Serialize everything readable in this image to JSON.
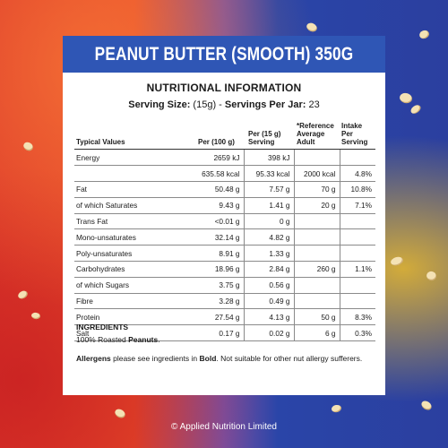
{
  "product": {
    "title": "PEANUT BUTTER (SMOOTH) 350G"
  },
  "nutrition": {
    "heading": "NUTRITIONAL INFORMATION",
    "serving_size_label": "Serving Size:",
    "serving_size_value": "(15g)",
    "servings_label": "Servings Per Jar:",
    "servings_value": "23",
    "columns": {
      "typical": "Typical Values",
      "per100": "Per (100 g)",
      "per15": "Per (15 g) Serving",
      "reference": "*Reference Average Adult",
      "intake": "Intake Per Serving"
    },
    "rows": [
      {
        "label": "Energy",
        "per100": "2659 kJ",
        "per15": "398 kJ",
        "ref": "",
        "ri": ""
      },
      {
        "label": "",
        "per100": "635.58 kcal",
        "per15": "95.33 kcal",
        "ref": "2000 kcal",
        "ri": "4.8%"
      },
      {
        "label": "Fat",
        "per100": "50.48 g",
        "per15": "7.57 g",
        "ref": "70 g",
        "ri": "10.8%"
      },
      {
        "label": "of which Saturates",
        "per100": "9.43 g",
        "per15": "1.41 g",
        "ref": "20 g",
        "ri": "7.1%"
      },
      {
        "label": "Trans Fat",
        "per100": "<0.01 g",
        "per15": "0 g",
        "ref": "",
        "ri": ""
      },
      {
        "label": "Mono-unsaturates",
        "per100": "32.14 g",
        "per15": "4.82 g",
        "ref": "",
        "ri": ""
      },
      {
        "label": "Poly-unsaturates",
        "per100": "8.91 g",
        "per15": "1.33 g",
        "ref": "",
        "ri": ""
      },
      {
        "label": "Carbohydrates",
        "per100": "18.96 g",
        "per15": "2.84 g",
        "ref": "260 g",
        "ri": "1.1%"
      },
      {
        "label": "of which Sugars",
        "per100": "3.75 g",
        "per15": "0.56 g",
        "ref": "",
        "ri": ""
      },
      {
        "label": "Fibre",
        "per100": "3.28 g",
        "per15": "0.49 g",
        "ref": "",
        "ri": ""
      },
      {
        "label": "Protein",
        "per100": "27.54 g",
        "per15": "4.13 g",
        "ref": "50 g",
        "ri": "8.3%"
      },
      {
        "label": "Salt",
        "per100": "0.17 g",
        "per15": "0.02 g",
        "ref": "6 g",
        "ri": "0.3%"
      }
    ]
  },
  "ingredients": {
    "heading": "INGREDIENTS",
    "text_prefix": "100% Roasted ",
    "text_bold": "Peanuts",
    "text_suffix": "."
  },
  "allergens": {
    "bold_lead": "Allergens",
    "text_mid": " please see ingredients in ",
    "bold_word": "Bold",
    "text_tail": ". Not suitable for other nut allergy sufferers."
  },
  "footer": {
    "copyright": "© Applied Nutrition Limited"
  },
  "colors": {
    "banner": "#2f56b5",
    "background_left": "#de3a2a",
    "background_right": "#2b3f9f"
  }
}
